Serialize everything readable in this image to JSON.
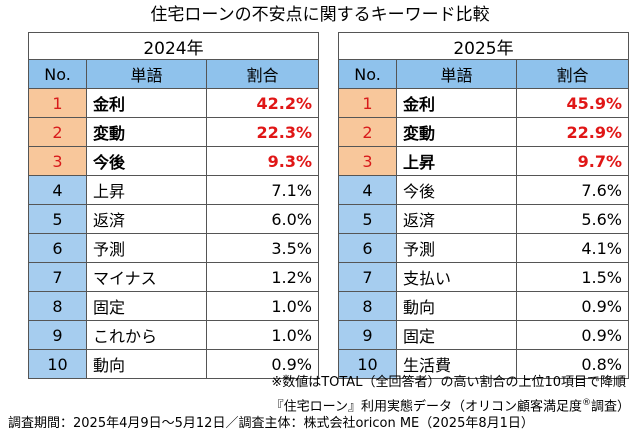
{
  "title": "住宅ローンの不安点に関するキーワード比較",
  "columns": {
    "no": "No.",
    "word": "単語",
    "ratio": "割合"
  },
  "tables": [
    {
      "year": "2024年",
      "rows": [
        {
          "no": "1",
          "word": "金利",
          "ratio": "42.2%"
        },
        {
          "no": "2",
          "word": "変動",
          "ratio": "22.3%"
        },
        {
          "no": "3",
          "word": "今後",
          "ratio": "9.3%"
        },
        {
          "no": "4",
          "word": "上昇",
          "ratio": "7.1%"
        },
        {
          "no": "5",
          "word": "返済",
          "ratio": "6.0%"
        },
        {
          "no": "6",
          "word": "予測",
          "ratio": "3.5%"
        },
        {
          "no": "7",
          "word": "マイナス",
          "ratio": "1.2%"
        },
        {
          "no": "8",
          "word": "固定",
          "ratio": "1.0%"
        },
        {
          "no": "9",
          "word": "これから",
          "ratio": "1.0%"
        },
        {
          "no": "10",
          "word": "動向",
          "ratio": "0.9%"
        }
      ]
    },
    {
      "year": "2025年",
      "rows": [
        {
          "no": "1",
          "word": "金利",
          "ratio": "45.9%"
        },
        {
          "no": "2",
          "word": "変動",
          "ratio": "22.9%"
        },
        {
          "no": "3",
          "word": "上昇",
          "ratio": "9.7%"
        },
        {
          "no": "4",
          "word": "今後",
          "ratio": "7.6%"
        },
        {
          "no": "5",
          "word": "返済",
          "ratio": "5.6%"
        },
        {
          "no": "6",
          "word": "予測",
          "ratio": "4.1%"
        },
        {
          "no": "7",
          "word": "支払い",
          "ratio": "1.5%"
        },
        {
          "no": "8",
          "word": "動向",
          "ratio": "0.9%"
        },
        {
          "no": "9",
          "word": "固定",
          "ratio": "0.9%"
        },
        {
          "no": "10",
          "word": "生活費",
          "ratio": "0.8%"
        }
      ]
    }
  ],
  "notes": {
    "line1": "※数値はTOTAL（全回答者）の高い割合の上位10項目で降順",
    "line2_a": "『住宅ローン』利用実態データ（オリコン顧客満足度",
    "line2_reg": "®",
    "line2_b": "調査）",
    "line3": "調査期間：2025年4月9日～5月12日／調査主体：株式会社oricon ME（2025年8月1日）"
  },
  "colors": {
    "header_blue": "#8fc2ec",
    "rank_orange": "#f8c79b",
    "rank_blue": "#a6cdef",
    "highlight_red": "#e01616"
  }
}
